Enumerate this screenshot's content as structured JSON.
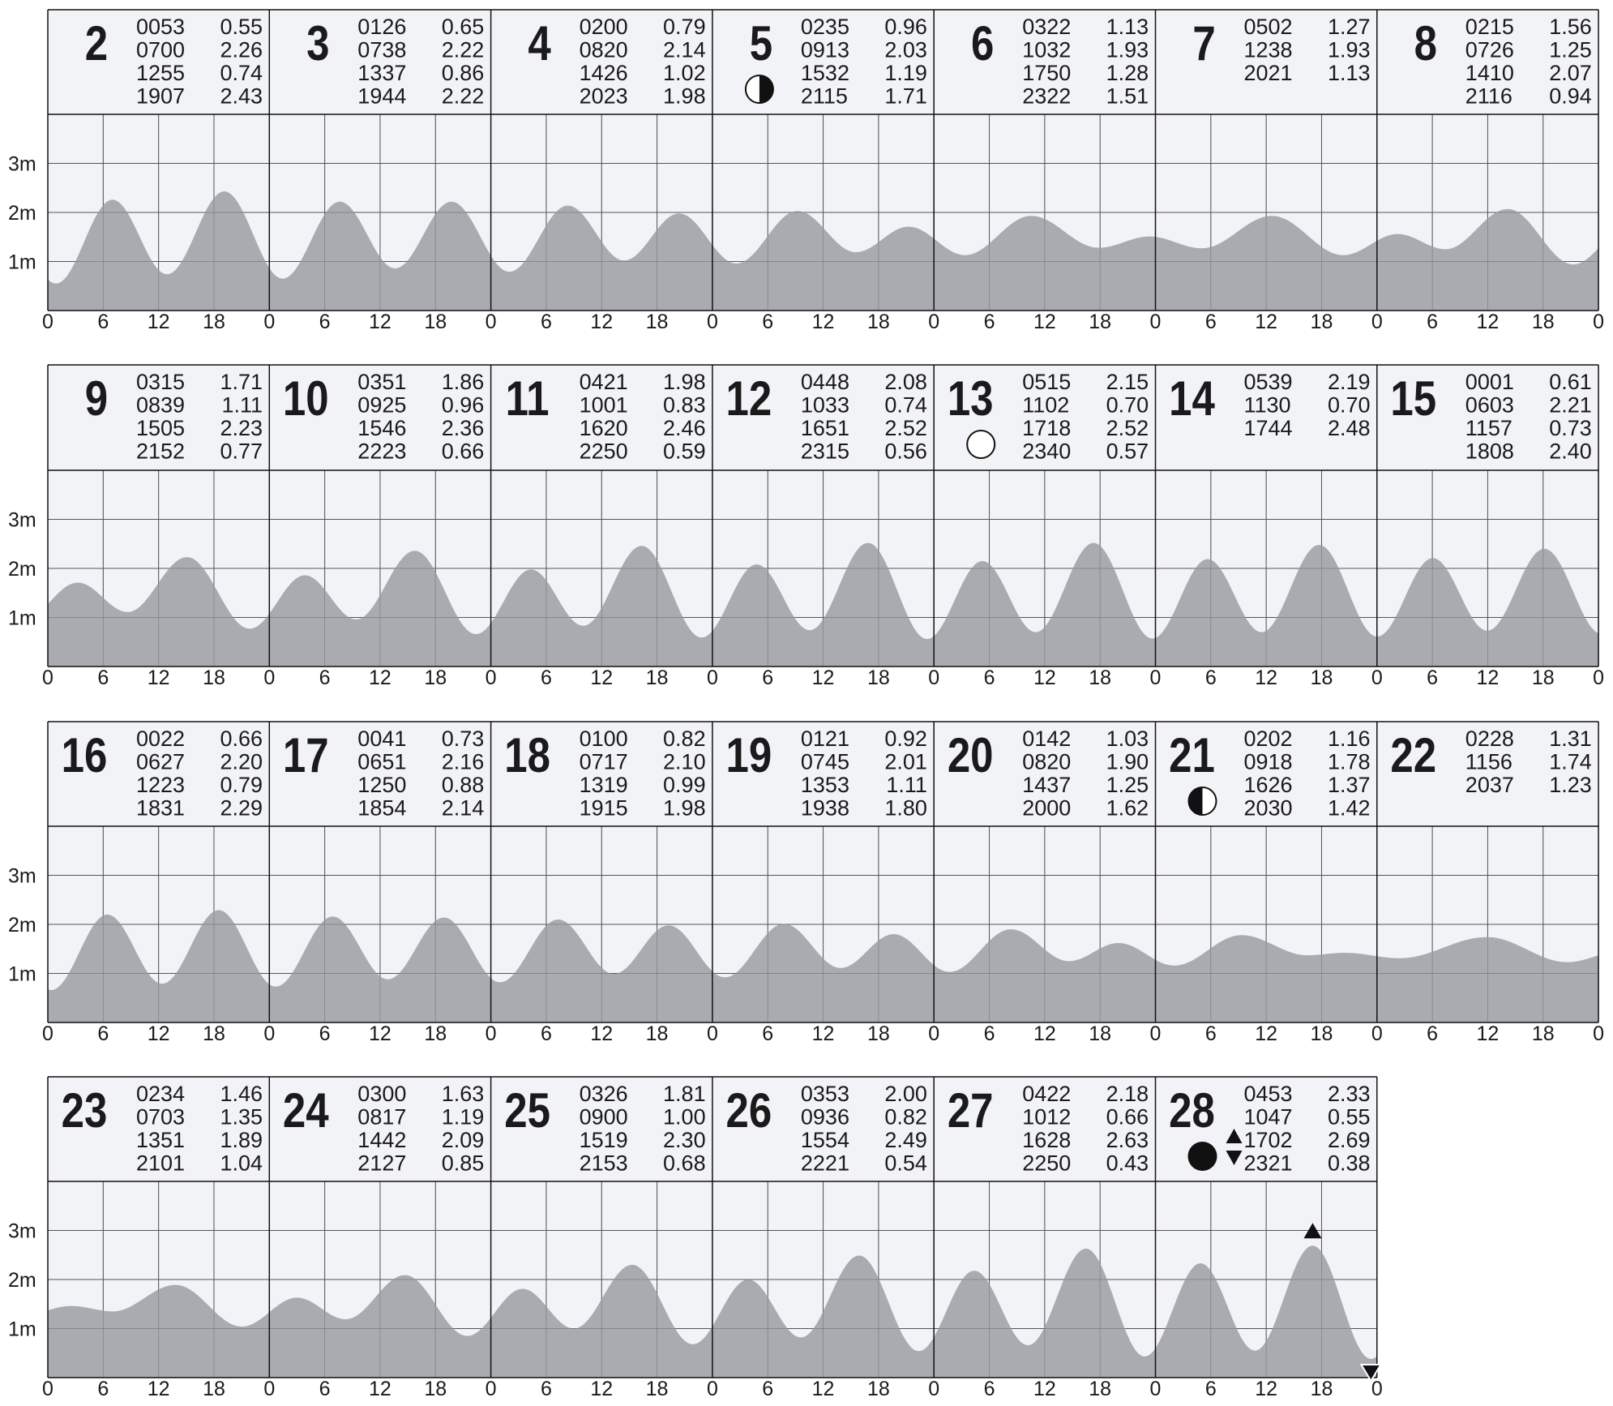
{
  "chart_data": {
    "type": "area",
    "ylabels": [
      "3m",
      "2m",
      "1m"
    ],
    "ylim": [
      0,
      4
    ],
    "hour_ticks": [
      "0",
      "6",
      "12",
      "18"
    ],
    "end_tick": "0",
    "colors": {
      "fill": "#a9abb0",
      "header_bg": "#f2f3f7",
      "plot_bg": "#f2f3f7",
      "grid": "#555555",
      "text": "#1a1a1a"
    },
    "rows": [
      {
        "days": [
          {
            "day": "2",
            "moon": null,
            "tides": [
              [
                "0053",
                "0.55"
              ],
              [
                "0700",
                "2.26"
              ],
              [
                "1255",
                "0.74"
              ],
              [
                "1907",
                "2.43"
              ]
            ]
          },
          {
            "day": "3",
            "moon": null,
            "tides": [
              [
                "0126",
                "0.65"
              ],
              [
                "0738",
                "2.22"
              ],
              [
                "1337",
                "0.86"
              ],
              [
                "1944",
                "2.22"
              ]
            ]
          },
          {
            "day": "4",
            "moon": null,
            "tides": [
              [
                "0200",
                "0.79"
              ],
              [
                "0820",
                "2.14"
              ],
              [
                "1426",
                "1.02"
              ],
              [
                "2023",
                "1.98"
              ]
            ]
          },
          {
            "day": "5",
            "moon": "last-quarter",
            "tides": [
              [
                "0235",
                "0.96"
              ],
              [
                "0913",
                "2.03"
              ],
              [
                "1532",
                "1.19"
              ],
              [
                "2115",
                "1.71"
              ]
            ]
          },
          {
            "day": "6",
            "moon": null,
            "tides": [
              [
                "0322",
                "1.13"
              ],
              [
                "1032",
                "1.93"
              ],
              [
                "1750",
                "1.28"
              ],
              [
                "2322",
                "1.51"
              ]
            ]
          },
          {
            "day": "7",
            "moon": null,
            "tides": [
              [
                "0502",
                "1.27"
              ],
              [
                "1238",
                "1.93"
              ],
              [
                "2021",
                "1.13"
              ]
            ]
          },
          {
            "day": "8",
            "moon": null,
            "tides": [
              [
                "0215",
                "1.56"
              ],
              [
                "0726",
                "1.25"
              ],
              [
                "1410",
                "2.07"
              ],
              [
                "2116",
                "0.94"
              ]
            ]
          }
        ]
      },
      {
        "days": [
          {
            "day": "9",
            "moon": null,
            "tides": [
              [
                "0315",
                "1.71"
              ],
              [
                "0839",
                "1.11"
              ],
              [
                "1505",
                "2.23"
              ],
              [
                "2152",
                "0.77"
              ]
            ]
          },
          {
            "day": "10",
            "moon": null,
            "tides": [
              [
                "0351",
                "1.86"
              ],
              [
                "0925",
                "0.96"
              ],
              [
                "1546",
                "2.36"
              ],
              [
                "2223",
                "0.66"
              ]
            ]
          },
          {
            "day": "11",
            "moon": null,
            "tides": [
              [
                "0421",
                "1.98"
              ],
              [
                "1001",
                "0.83"
              ],
              [
                "1620",
                "2.46"
              ],
              [
                "2250",
                "0.59"
              ]
            ]
          },
          {
            "day": "12",
            "moon": null,
            "tides": [
              [
                "0448",
                "2.08"
              ],
              [
                "1033",
                "0.74"
              ],
              [
                "1651",
                "2.52"
              ],
              [
                "2315",
                "0.56"
              ]
            ]
          },
          {
            "day": "13",
            "moon": "full",
            "tides": [
              [
                "0515",
                "2.15"
              ],
              [
                "1102",
                "0.70"
              ],
              [
                "1718",
                "2.52"
              ],
              [
                "2340",
                "0.57"
              ]
            ]
          },
          {
            "day": "14",
            "moon": null,
            "tides": [
              [
                "0539",
                "2.19"
              ],
              [
                "1130",
                "0.70"
              ],
              [
                "1744",
                "2.48"
              ]
            ]
          },
          {
            "day": "15",
            "moon": null,
            "tides": [
              [
                "0001",
                "0.61"
              ],
              [
                "0603",
                "2.21"
              ],
              [
                "1157",
                "0.73"
              ],
              [
                "1808",
                "2.40"
              ]
            ]
          }
        ]
      },
      {
        "days": [
          {
            "day": "16",
            "moon": null,
            "tides": [
              [
                "0022",
                "0.66"
              ],
              [
                "0627",
                "2.20"
              ],
              [
                "1223",
                "0.79"
              ],
              [
                "1831",
                "2.29"
              ]
            ]
          },
          {
            "day": "17",
            "moon": null,
            "tides": [
              [
                "0041",
                "0.73"
              ],
              [
                "0651",
                "2.16"
              ],
              [
                "1250",
                "0.88"
              ],
              [
                "1854",
                "2.14"
              ]
            ]
          },
          {
            "day": "18",
            "moon": null,
            "tides": [
              [
                "0100",
                "0.82"
              ],
              [
                "0717",
                "2.10"
              ],
              [
                "1319",
                "0.99"
              ],
              [
                "1915",
                "1.98"
              ]
            ]
          },
          {
            "day": "19",
            "moon": null,
            "tides": [
              [
                "0121",
                "0.92"
              ],
              [
                "0745",
                "2.01"
              ],
              [
                "1353",
                "1.11"
              ],
              [
                "1938",
                "1.80"
              ]
            ]
          },
          {
            "day": "20",
            "moon": null,
            "tides": [
              [
                "0142",
                "1.03"
              ],
              [
                "0820",
                "1.90"
              ],
              [
                "1437",
                "1.25"
              ],
              [
                "2000",
                "1.62"
              ]
            ]
          },
          {
            "day": "21",
            "moon": "first-quarter",
            "tides": [
              [
                "0202",
                "1.16"
              ],
              [
                "0918",
                "1.78"
              ],
              [
                "1626",
                "1.37"
              ],
              [
                "2030",
                "1.42"
              ]
            ]
          },
          {
            "day": "22",
            "moon": null,
            "tides": [
              [
                "0228",
                "1.31"
              ],
              [
                "1156",
                "1.74"
              ],
              [
                "2037",
                "1.23"
              ]
            ]
          }
        ]
      },
      {
        "days": [
          {
            "day": "23",
            "moon": null,
            "tides": [
              [
                "0234",
                "1.46"
              ],
              [
                "0703",
                "1.35"
              ],
              [
                "1351",
                "1.89"
              ],
              [
                "2101",
                "1.04"
              ]
            ]
          },
          {
            "day": "24",
            "moon": null,
            "tides": [
              [
                "0300",
                "1.63"
              ],
              [
                "0817",
                "1.19"
              ],
              [
                "1442",
                "2.09"
              ],
              [
                "2127",
                "0.85"
              ]
            ]
          },
          {
            "day": "25",
            "moon": null,
            "tides": [
              [
                "0326",
                "1.81"
              ],
              [
                "0900",
                "1.00"
              ],
              [
                "1519",
                "2.30"
              ],
              [
                "2153",
                "0.68"
              ]
            ]
          },
          {
            "day": "26",
            "moon": null,
            "tides": [
              [
                "0353",
                "2.00"
              ],
              [
                "0936",
                "0.82"
              ],
              [
                "1554",
                "2.49"
              ],
              [
                "2221",
                "0.54"
              ]
            ]
          },
          {
            "day": "27",
            "moon": null,
            "tides": [
              [
                "0422",
                "2.18"
              ],
              [
                "1012",
                "0.66"
              ],
              [
                "1628",
                "2.63"
              ],
              [
                "2250",
                "0.43"
              ]
            ]
          },
          {
            "day": "28",
            "moon": "new",
            "extremes": true,
            "tides": [
              [
                "0453",
                "2.33"
              ],
              [
                "1047",
                "0.55"
              ],
              [
                "1702",
                "2.69"
              ],
              [
                "2321",
                "0.38"
              ]
            ]
          }
        ]
      }
    ],
    "boundary_levels": {
      "row1_start": 0.8,
      "row2_start": 1.3,
      "row3_start": 0.7,
      "row4_start": 1.4
    }
  }
}
